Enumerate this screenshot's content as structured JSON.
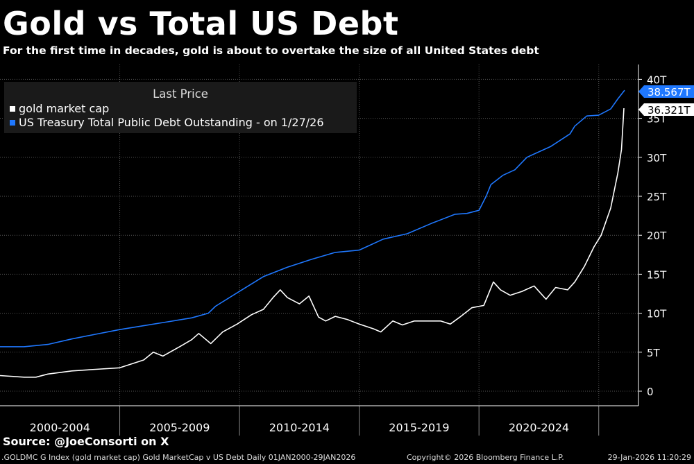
{
  "title": "Gold vs Total US Debt",
  "subtitle": "For the first time in decades, gold is about to overtake the size of all United States debt",
  "legend": {
    "title": "Last Price",
    "items": [
      {
        "label": "gold market cap",
        "color": "#ffffff"
      },
      {
        "label": "US Treasury Total Public Debt Outstanding -  on 1/27/26",
        "color": "#1f78ff"
      }
    ]
  },
  "source": "Source: @JoeConsorti on X",
  "footer": {
    "left": ".GOLDMC G Index (gold market cap) Gold MarketCap v US Debt Daily 01JAN2000-29JAN2026",
    "mid": "Copyright© 2026 Bloomberg Finance L.P.",
    "right": "29-Jan-2026 11:20:29"
  },
  "chart_data": {
    "type": "line",
    "x_period_labels": [
      "2000-2004",
      "2005-2009",
      "2010-2014",
      "2015-2019",
      "2020-2024"
    ],
    "xlim": [
      2000.0,
      2026.08
    ],
    "ylim": [
      0,
      40
    ],
    "y_unit": "T",
    "y_ticks": [
      0,
      5,
      10,
      15,
      20,
      25,
      30,
      35,
      40
    ],
    "y_tick_labels": [
      "0",
      "5T",
      "10T",
      "15T",
      "20T",
      "25T",
      "30T",
      "35T",
      "40T"
    ],
    "grid": true,
    "axis_position": "right",
    "legend_position": "top-left",
    "series": [
      {
        "name": "gold market cap",
        "color": "#ffffff",
        "last_value_label": "36.321T",
        "x": [
          2000.0,
          2001.0,
          2001.5,
          2002.0,
          2003.0,
          2004.0,
          2005.0,
          2006.0,
          2006.4,
          2006.8,
          2007.5,
          2008.0,
          2008.3,
          2008.8,
          2009.3,
          2009.9,
          2010.5,
          2011.0,
          2011.4,
          2011.7,
          2012.0,
          2012.5,
          2012.9,
          2013.3,
          2013.6,
          2014.0,
          2014.5,
          2015.0,
          2015.6,
          2015.9,
          2016.4,
          2016.8,
          2017.3,
          2017.9,
          2018.4,
          2018.8,
          2019.2,
          2019.7,
          2020.2,
          2020.6,
          2020.9,
          2021.3,
          2021.8,
          2022.3,
          2022.8,
          2023.2,
          2023.7,
          2024.0,
          2024.4,
          2024.8,
          2025.1,
          2025.5,
          2025.8,
          2025.95,
          2026.05
        ],
        "y": [
          2.0,
          1.8,
          1.8,
          2.2,
          2.6,
          2.8,
          3.0,
          4.0,
          5.0,
          4.5,
          5.7,
          6.6,
          7.4,
          6.1,
          7.6,
          8.6,
          9.8,
          10.5,
          12.0,
          13.0,
          12.0,
          11.2,
          12.2,
          9.5,
          9.0,
          9.6,
          9.2,
          8.6,
          8.0,
          7.6,
          9.0,
          8.5,
          9.0,
          9.0,
          9.0,
          8.6,
          9.5,
          10.7,
          11.0,
          14.0,
          13.0,
          12.3,
          12.8,
          13.5,
          11.8,
          13.3,
          13.0,
          14.0,
          16.0,
          18.5,
          20.0,
          23.5,
          28.0,
          31.0,
          36.3
        ]
      },
      {
        "name": "US Treasury Total Public Debt Outstanding -  on 1/27/26",
        "color": "#1f78ff",
        "last_value_label": "38.567T",
        "x": [
          2000.0,
          2001.0,
          2002.0,
          2003.0,
          2004.0,
          2005.0,
          2006.0,
          2007.0,
          2008.0,
          2008.7,
          2009.0,
          2010.0,
          2011.0,
          2012.0,
          2013.0,
          2014.0,
          2015.0,
          2016.0,
          2017.0,
          2018.0,
          2019.0,
          2019.5,
          2020.0,
          2020.3,
          2020.5,
          2021.0,
          2021.5,
          2022.0,
          2023.0,
          2023.5,
          2023.8,
          2024.0,
          2024.5,
          2025.0,
          2025.5,
          2025.8,
          2026.08
        ],
        "y": [
          5.7,
          5.7,
          6.0,
          6.7,
          7.3,
          7.9,
          8.4,
          8.9,
          9.4,
          10.0,
          10.9,
          12.8,
          14.7,
          15.9,
          16.9,
          17.8,
          18.1,
          19.5,
          20.2,
          21.5,
          22.7,
          22.8,
          23.2,
          25.0,
          26.5,
          27.7,
          28.4,
          30.0,
          31.4,
          32.4,
          33.0,
          34.0,
          35.3,
          35.4,
          36.2,
          37.5,
          38.6
        ]
      }
    ]
  }
}
